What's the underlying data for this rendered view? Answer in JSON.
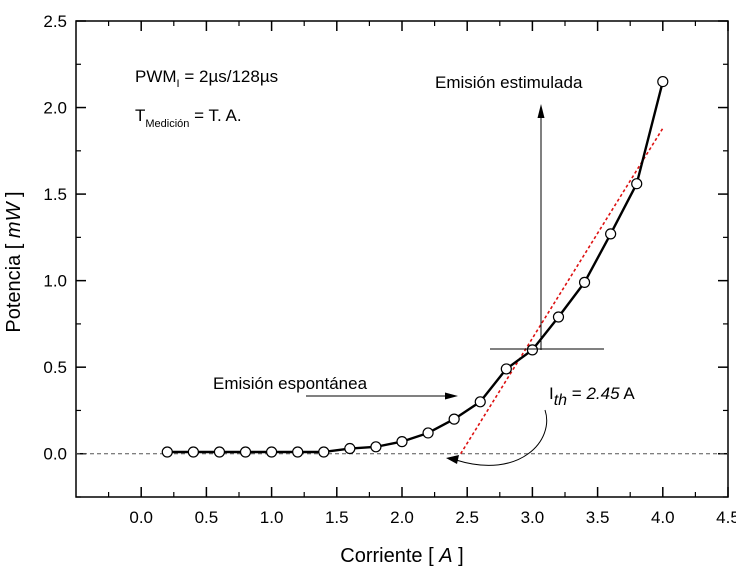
{
  "chart_data": {
    "type": "line",
    "x_axis": {
      "label_prefix": "Corriente [ ",
      "label_unit": "A",
      "label_suffix": " ]",
      "range": [
        -0.5,
        4.5
      ],
      "ticks": [
        "0.0",
        "0.5",
        "1.0",
        "1.5",
        "2.0",
        "2.5",
        "3.0",
        "3.5",
        "4.0",
        "4.5"
      ]
    },
    "y_axis": {
      "label_prefix": "Potencia [ ",
      "label_unit": "mW",
      "label_suffix": " ]",
      "range": [
        -0.25,
        2.5
      ],
      "ticks": [
        "0.0",
        "0.5",
        "1.0",
        "1.5",
        "2.0",
        "2.5"
      ]
    },
    "grid": false,
    "series": [
      {
        "style": "line-with-open-circles",
        "color": "#000000",
        "x": [
          0.2,
          0.4,
          0.6,
          0.8,
          1.0,
          1.2,
          1.4,
          1.6,
          1.8,
          2.0,
          2.2,
          2.4,
          2.6,
          2.8,
          3.0,
          3.2,
          3.4,
          3.6,
          3.8,
          4.0
        ],
        "y": [
          0.01,
          0.01,
          0.01,
          0.01,
          0.01,
          0.01,
          0.01,
          0.03,
          0.04,
          0.07,
          0.12,
          0.2,
          0.3,
          0.49,
          0.6,
          0.79,
          0.99,
          1.27,
          1.56,
          2.15
        ]
      }
    ],
    "threshold_fit": {
      "color": "#dd1111",
      "x_start": 2.45,
      "y_start": 0.0,
      "x_end": 4.0,
      "y_end": 1.88
    },
    "baseline_y": 0.0,
    "annotations": {
      "pwm_main": "PWM",
      "pwm_sub": "I",
      "pwm_value": " = 2µs/128µs",
      "t_main": "T",
      "t_sub": "Medición",
      "t_value": " = T. A.",
      "stimulated": "Emisión estimulada",
      "spontaneous": "Emisión espontánea",
      "ith_main": "I",
      "ith_sub": "th",
      "ith_eq": " = ",
      "ith_value": "2.45",
      "ith_unit": " A"
    }
  }
}
